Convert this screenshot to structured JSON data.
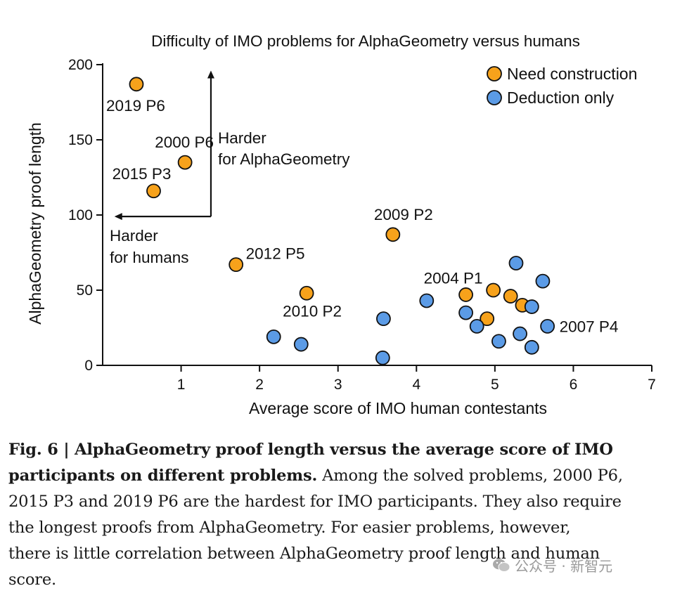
{
  "chart_data": {
    "type": "scatter",
    "title": "Difficulty of IMO problems for AlphaGeometry versus humans",
    "xlabel": "Average score of IMO human contestants",
    "ylabel": "AlphaGeometry proof length",
    "xlim": [
      0,
      7
    ],
    "ylim": [
      0,
      200
    ],
    "x_ticks": [
      "1",
      "2",
      "3",
      "4",
      "5",
      "6",
      "7"
    ],
    "y_ticks": [
      "0",
      "50",
      "100",
      "150",
      "200"
    ],
    "legend_position": "top-right",
    "series": [
      {
        "name": "Need construction",
        "color": "#F7A21B",
        "points": [
          {
            "x": 0.43,
            "y": 187,
            "label": "2019 P6"
          },
          {
            "x": 1.05,
            "y": 135,
            "label": "2000 P6"
          },
          {
            "x": 0.65,
            "y": 116,
            "label": "2015 P3"
          },
          {
            "x": 3.7,
            "y": 87,
            "label": "2009 P2"
          },
          {
            "x": 1.7,
            "y": 67,
            "label": "2012 P5"
          },
          {
            "x": 2.6,
            "y": 48,
            "label": "2010 P2"
          },
          {
            "x": 4.63,
            "y": 47,
            "label": "2004 P1"
          },
          {
            "x": 4.98,
            "y": 50,
            "label": ""
          },
          {
            "x": 5.2,
            "y": 46,
            "label": ""
          },
          {
            "x": 5.35,
            "y": 40,
            "label": ""
          },
          {
            "x": 4.9,
            "y": 31,
            "label": ""
          }
        ]
      },
      {
        "name": "Deduction only",
        "color": "#5B9BE6",
        "points": [
          {
            "x": 2.18,
            "y": 19,
            "label": ""
          },
          {
            "x": 2.53,
            "y": 14,
            "label": ""
          },
          {
            "x": 3.58,
            "y": 31,
            "label": ""
          },
          {
            "x": 3.57,
            "y": 5,
            "label": ""
          },
          {
            "x": 4.13,
            "y": 43,
            "label": ""
          },
          {
            "x": 4.63,
            "y": 35,
            "label": ""
          },
          {
            "x": 4.77,
            "y": 26,
            "label": ""
          },
          {
            "x": 5.05,
            "y": 16,
            "label": ""
          },
          {
            "x": 5.27,
            "y": 68,
            "label": ""
          },
          {
            "x": 5.32,
            "y": 21,
            "label": ""
          },
          {
            "x": 5.47,
            "y": 39,
            "label": ""
          },
          {
            "x": 5.47,
            "y": 12,
            "label": ""
          },
          {
            "x": 5.61,
            "y": 56,
            "label": ""
          },
          {
            "x": 5.67,
            "y": 26,
            "label": "2007 P4"
          }
        ]
      }
    ],
    "annotations": {
      "vertical_arrow": [
        "Harder",
        "for AlphaGeometry"
      ],
      "horizontal_arrow": [
        "Harder",
        "for humans"
      ],
      "arrow_origin": {
        "x": 1.38,
        "y": 99
      },
      "vertical_arrow_to_y": 196,
      "horizontal_arrow_to_x": 0.15
    }
  },
  "caption": {
    "label": "Fig. 6 | AlphaGeometry proof length versus the average score of IMO participants on different problems.",
    "lines": [
      "Among the solved problems, 2000 P6,",
      "2015 P3 and 2019 P6 are the hardest for IMO participants. They also require",
      "the longest proofs from AlphaGeometry. For easier problems, however,",
      "there is little correlation between AlphaGeometry proof length and human",
      "score."
    ],
    "label_line1": "Fig. 6 | AlphaGeometry proof length versus the average score of IMO",
    "label_line2": "participants on different problems."
  },
  "watermark": {
    "text": "公众号 · 新智元",
    "icon": "wechat-icon"
  }
}
